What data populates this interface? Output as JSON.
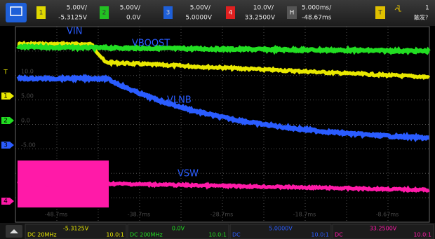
{
  "top_bar": {
    "channels": [
      {
        "number": "1",
        "scale": "5.00V/",
        "offset": "-5.3125V"
      },
      {
        "number": "2",
        "scale": "5.00V/",
        "offset": "0.0V"
      },
      {
        "number": "3",
        "scale": "5.00V/",
        "offset": "5.0000V"
      },
      {
        "number": "4",
        "scale": "10.0V/",
        "offset": "33.2500V"
      }
    ],
    "horizontal": {
      "label": "H",
      "scale": "5.000ms/",
      "delay": "-48.67ms"
    },
    "trigger": {
      "label": "T",
      "source": "1",
      "status": "触发?"
    }
  },
  "screen": {
    "trace_labels": [
      "VIN",
      "VBOOST",
      "VLNB",
      "VSW"
    ],
    "channel_markers": [
      "T",
      "1",
      "2",
      "3",
      "4"
    ],
    "y_grid_labels": [
      "19.0",
      "10.0",
      "5.00",
      "0.0",
      "-5.00",
      "-10.0",
      "-15.0"
    ],
    "x_grid_labels": [
      "-48.7ms",
      "-38.7ms",
      "-28.7ms",
      "-18.7ms",
      "-8.67ms"
    ]
  },
  "bottom_bar": {
    "channels": [
      {
        "offset": "-5.3125V",
        "coupling": "DC 20MHz",
        "probe": "10.0:1"
      },
      {
        "offset": "0.0V",
        "coupling": "DC 200MHz",
        "probe": "10.0:1"
      },
      {
        "offset": "5.0000V",
        "coupling": "DC",
        "probe": "10.0:1"
      },
      {
        "offset": "33.2500V",
        "coupling": "DC",
        "probe": "10.0:1"
      }
    ]
  }
}
